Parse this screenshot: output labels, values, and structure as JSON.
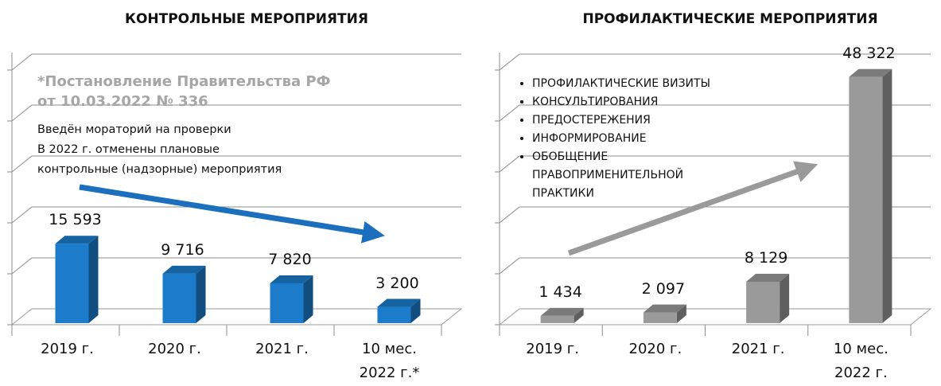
{
  "chart_data": [
    {
      "type": "bar3d",
      "title": "КОНТРОЛЬНЫЕ МЕРОПРИЯТИЯ",
      "categories": [
        "2019 г.",
        "2020 г.",
        "2021 г.",
        "10 мес. 2022 г.*"
      ],
      "values": [
        15593,
        9716,
        7820,
        3200
      ],
      "value_labels": [
        "15 593",
        "9 716",
        "7 820",
        "3 200"
      ],
      "color": "#1c7ccb",
      "ylim": [
        0,
        55000
      ],
      "yticks": [
        0,
        10000,
        20000,
        30000,
        40000,
        50000
      ],
      "grid": true,
      "annotation_heading": [
        "*Постановление Правительства РФ",
        "от 10.03.2022 № 336"
      ],
      "annotation_lines": [
        "Введён мораторий на проверки",
        "В 2022 г. отменены плановые",
        "контрольные (надзорные) мероприятия"
      ]
    },
    {
      "type": "bar3d",
      "title": "ПРОФИЛАКТИЧЕСКИЕ МЕРОПРИЯТИЯ",
      "categories": [
        "2019 г.",
        "2020 г.",
        "2021 г.",
        "10 мес. 2022 г."
      ],
      "values": [
        1434,
        2097,
        8129,
        48322
      ],
      "value_labels": [
        "1 434",
        "2 097",
        "8 129",
        "48 322"
      ],
      "color": "#9a9a9a",
      "ylim": [
        0,
        55000
      ],
      "yticks": [
        0,
        10000,
        20000,
        30000,
        40000,
        50000
      ],
      "grid": true,
      "bullets": [
        "ПРОФИЛАКТИЧЕСКИЕ ВИЗИТЫ",
        "КОНСУЛЬТИРОВАНИЯ",
        "ПРЕДОСТЕРЕЖЕНИЯ",
        "ИНФОРМИРОВАНИЕ",
        "ОБОБЩЕНИЕ ПРАВОПРИМЕНИТЕЛЬНОЙ ПРАКТИКИ"
      ]
    }
  ]
}
